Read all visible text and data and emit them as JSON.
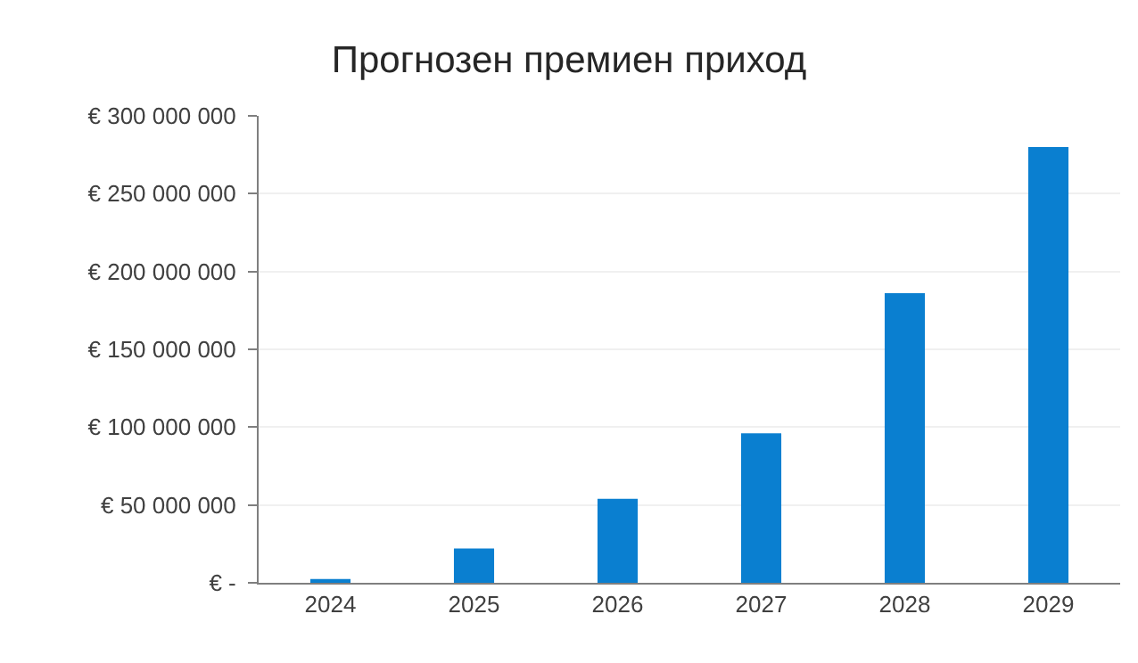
{
  "chart_data": {
    "type": "bar",
    "title": "Прогнозен премиен приход",
    "categories": [
      "2024",
      "2025",
      "2026",
      "2027",
      "2028",
      "2029"
    ],
    "values": [
      2500000,
      22000000,
      54000000,
      96000000,
      186000000,
      280000000
    ],
    "color": "#0a7fd0",
    "ylim": [
      0,
      300000000
    ],
    "yticks": [
      {
        "value": 0,
        "label": "€ -"
      },
      {
        "value": 50000000,
        "label": "€ 50 000 000"
      },
      {
        "value": 100000000,
        "label": "€ 100 000 000"
      },
      {
        "value": 150000000,
        "label": "€ 150 000 000"
      },
      {
        "value": 200000000,
        "label": "€ 200 000 000"
      },
      {
        "value": 250000000,
        "label": "€ 250 000 000"
      },
      {
        "value": 300000000,
        "label": "€ 300 000 000"
      }
    ],
    "grid": "y"
  }
}
